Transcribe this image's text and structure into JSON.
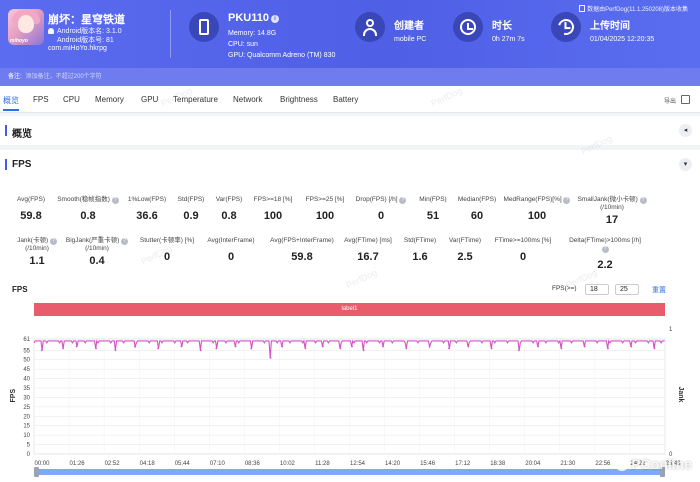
{
  "header": {
    "app": {
      "name": "崩坏：星穹铁道",
      "icon_tag": "mihoyo",
      "android_version": "Android版本名: 3.1.0",
      "android_code": "Android版本号: 81",
      "package": "com.miHoYo.hkrpg"
    },
    "device": {
      "name": "PKU110",
      "info_badge": "i",
      "memory": "Memory: 14.8G",
      "cpu": "CPU: sun",
      "gpu": "GPU: Qualcomm Adreno (TM) 830"
    },
    "creator": {
      "title": "创建者",
      "value": "mobile PC"
    },
    "duration": {
      "title": "时长",
      "value": "0h 27m 7s"
    },
    "upload": {
      "title": "上传时间",
      "value": "01/04/2025 12:20:35"
    },
    "data_version": "数据由PerfDog(11.1.250208)版本收集",
    "remark_label": "备注:",
    "remark_placeholder": "添加备注，不超过200个字符",
    "accent_color": "#4f5fe6"
  },
  "tabs": [
    "概览",
    "FPS",
    "CPU",
    "Memory",
    "GPU",
    "Temperature",
    "Network",
    "Brightness",
    "Battery"
  ],
  "export_label": "导出",
  "overview_section": {
    "title": "概览",
    "toggle": "◂"
  },
  "fps_section": {
    "title": "FPS",
    "toggle": "▾",
    "metrics_row1": [
      {
        "label": "Avg(FPS)",
        "value": "59.8",
        "help": false
      },
      {
        "label": "Smooth(稳帧指数)",
        "value": "0.8",
        "help": true
      },
      {
        "label": "1%Low(FPS)",
        "value": "36.6",
        "help": false
      },
      {
        "label": "Std(FPS)",
        "value": "0.9",
        "help": false
      },
      {
        "label": "Var(FPS)",
        "value": "0.8",
        "help": false
      },
      {
        "label": "FPS>=18 [%]",
        "value": "100",
        "help": false
      },
      {
        "label": "FPS>=25 [%]",
        "value": "100",
        "help": false
      },
      {
        "label": "Drop(FPS) [/h]",
        "value": "0",
        "help": true
      },
      {
        "label": "Min(FPS)",
        "value": "51",
        "help": false
      },
      {
        "label": "Median(FPS)",
        "value": "60",
        "help": false
      },
      {
        "label": "MedRange(FPS)[%]",
        "value": "100",
        "help": true
      },
      {
        "label": "SmallJank(微小卡顿)\n(/10min)",
        "value": "17",
        "help": true
      }
    ],
    "metrics_row2": [
      {
        "label": "Jank(卡顿)\n(/10min)",
        "value": "1.1",
        "help": true
      },
      {
        "label": "BigJank(严重卡顿)\n(/10min)",
        "value": "0.4",
        "help": true
      },
      {
        "label": "Stutter(卡顿率) [%]",
        "value": "0",
        "help": false
      },
      {
        "label": "Avg(InterFrame)",
        "value": "0",
        "help": false
      },
      {
        "label": "Avg(FPS+InterFrame)",
        "value": "59.8",
        "help": false
      },
      {
        "label": "Avg(FTime) [ms]",
        "value": "16.7",
        "help": false
      },
      {
        "label": "Std(FTime)",
        "value": "1.6",
        "help": false
      },
      {
        "label": "Var(FTime)",
        "value": "2.5",
        "help": false
      },
      {
        "label": "FTime>=100ms [%]",
        "value": "0",
        "help": false
      },
      {
        "label": "Delta(FTime)>100ms [/h]",
        "value": "2.2",
        "help": true
      }
    ],
    "threshold_label": "FPS(>=)",
    "threshold_1": "18",
    "threshold_2": "25",
    "reset_label": "重置"
  },
  "watermark": "PerfDog",
  "brand": "PConline",
  "chart_data": {
    "type": "line",
    "title": "FPS",
    "band_label": "label1",
    "ylabel": "FPS",
    "y2label": "Jank",
    "yticks": [
      0,
      5,
      10,
      15,
      20,
      25,
      30,
      35,
      40,
      45,
      50,
      55,
      61
    ],
    "ylim": [
      0,
      61
    ],
    "y2ticks": [
      0,
      1
    ],
    "y2lim": [
      0,
      1
    ],
    "xticks": [
      "00:00",
      "01:26",
      "02:52",
      "04:18",
      "05:44",
      "07:10",
      "08:36",
      "10:02",
      "11:28",
      "12:54",
      "14:20",
      "15:46",
      "17:12",
      "18:38",
      "20:04",
      "21:30",
      "22:56",
      "24:22",
      "25:48"
    ],
    "xlim_seconds": [
      0,
      1627
    ],
    "series": [
      {
        "baseline": 60,
        "dips": [
          [
            20,
            55
          ],
          [
            75,
            56
          ],
          [
            110,
            57
          ],
          [
            160,
            56
          ],
          [
            210,
            55
          ],
          [
            260,
            57
          ],
          [
            320,
            56
          ],
          [
            380,
            57
          ],
          [
            430,
            55
          ],
          [
            470,
            56
          ],
          [
            520,
            57
          ],
          [
            560,
            56
          ],
          [
            610,
            51
          ],
          [
            640,
            57
          ],
          [
            700,
            56
          ],
          [
            745,
            57
          ],
          [
            790,
            56
          ],
          [
            820,
            57
          ],
          [
            850,
            55
          ],
          [
            900,
            57
          ],
          [
            960,
            56
          ],
          [
            1020,
            57
          ],
          [
            1070,
            56
          ],
          [
            1120,
            57
          ],
          [
            1180,
            56
          ],
          [
            1250,
            55
          ],
          [
            1300,
            57
          ],
          [
            1360,
            56
          ],
          [
            1420,
            57
          ],
          [
            1480,
            56
          ],
          [
            1540,
            57
          ],
          [
            1600,
            56
          ]
        ]
      }
    ],
    "grid": true,
    "line_color": "#d64fc8"
  }
}
